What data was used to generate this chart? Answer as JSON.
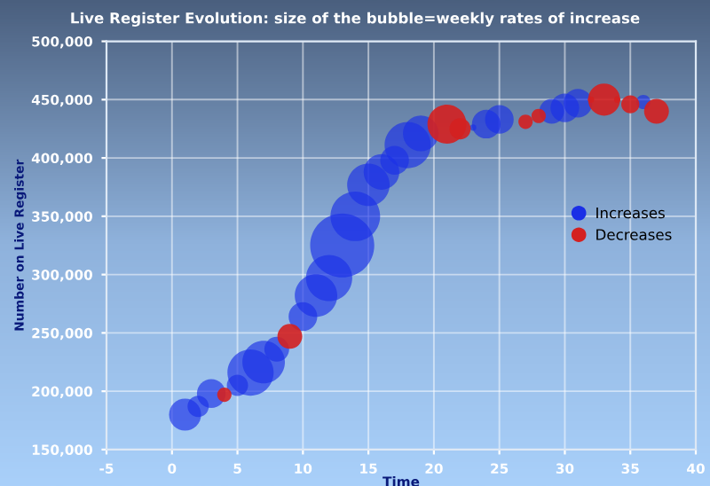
{
  "chart_data": {
    "type": "bubble",
    "title": "Live Register Evolution: size of the bubble=weekly rates of increase",
    "xlabel": "Time",
    "ylabel": "Number on Live Register",
    "xlim": [
      -5,
      40
    ],
    "xticks": [
      -5,
      0,
      5,
      10,
      15,
      20,
      25,
      30,
      35,
      40
    ],
    "ylim": [
      150000,
      500000
    ],
    "yticks": [
      {
        "value": 150000,
        "label": "150,000"
      },
      {
        "value": 200000,
        "label": "200,000"
      },
      {
        "value": 250000,
        "label": "250,000"
      },
      {
        "value": 300000,
        "label": "300,000"
      },
      {
        "value": 350000,
        "label": "350,000"
      },
      {
        "value": 400000,
        "label": "400,000"
      },
      {
        "value": 450000,
        "label": "450,000"
      },
      {
        "value": 500000,
        "label": "500,000"
      }
    ],
    "grid": true,
    "legend": "right",
    "series": [
      {
        "name": "Increases",
        "color": "#1a2fe6",
        "x": [
          1,
          2,
          3,
          5,
          6,
          7,
          8,
          10,
          11,
          12,
          13,
          14,
          15,
          16,
          17,
          18,
          19,
          23,
          24,
          25,
          29,
          30,
          31,
          36
        ],
        "values": [
          180000,
          187000,
          198000,
          205000,
          216000,
          225000,
          236000,
          264000,
          282000,
          297000,
          325000,
          350000,
          377000,
          388000,
          398000,
          411000,
          421000,
          426000,
          429000,
          433000,
          440000,
          443000,
          447000,
          448000
        ],
        "sizes": [
          0.25,
          0.11,
          0.2,
          0.11,
          0.52,
          0.44,
          0.15,
          0.2,
          0.44,
          0.52,
          1,
          0.6,
          0.44,
          0.31,
          0.2,
          0.52,
          0.31,
          0.01,
          0.2,
          0.2,
          0.15,
          0.2,
          0.2,
          0.05
        ]
      },
      {
        "name": "Decreases",
        "color": "#d42020",
        "x": [
          4,
          9,
          21,
          22,
          27,
          28,
          32,
          33,
          34,
          35,
          37
        ],
        "values": [
          197000,
          247000,
          429000,
          425000,
          431000,
          436000,
          450000,
          450000,
          450000,
          446000,
          440000
        ],
        "sizes": [
          0.05,
          0.15,
          0.37,
          0.11,
          0.05,
          0.05,
          0.01,
          0.25,
          0.01,
          0.08,
          0.15
        ]
      }
    ]
  }
}
